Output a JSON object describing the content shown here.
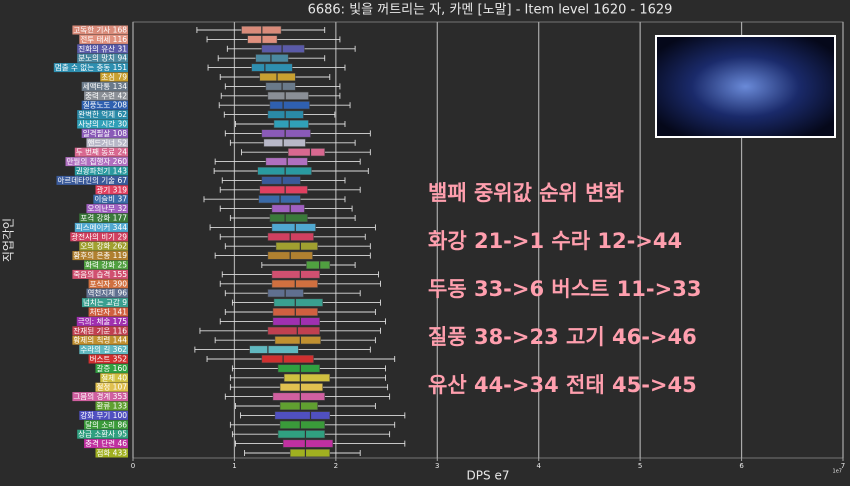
{
  "chart_data": {
    "type": "box",
    "title": "6686: 빛을 꺼트리는 자, 카멘 [노말] - Item level 1620 - 1629",
    "x_label": "DPS e7",
    "y_label": "직업각인",
    "x_offset_label": "1e7",
    "xlim": [
      0,
      7
    ],
    "xticks": [
      0,
      1,
      2,
      3,
      4,
      5,
      6,
      7
    ],
    "grid": true,
    "categories": [
      "고독한 기사 168",
      "전투 태세 116",
      "진화의 유산 31",
      "분노의 망치 94",
      "멈출 수 없는 충동 151",
      "초심 79",
      "세맥타통 134",
      "중력 수련 42",
      "질풍노도 208",
      "완벽한 억제 62",
      "사냥의 시간 30",
      "일격필살 108",
      "핸드거너 52",
      "두 번째 동료 24",
      "만월의 집행자 260",
      "권왕파천기 143",
      "아르데타인의 기술 67",
      "광기 319",
      "이슬비 37",
      "오의난무 32",
      "포격 강화 177",
      "피스메이커 344",
      "광전사의 비기 29",
      "오의 강화 262",
      "황후의 은총 119",
      "화력 강화 25",
      "죽음의 습격 155",
      "포식자 390",
      "역천지체 96",
      "넘치는 교감 9",
      "처단자 141",
      "극의: 체술 175",
      "잔재된 기운 116",
      "황제의 칙령 144",
      "수라의 길 362",
      "버스트 352",
      "갈증 160",
      "절제 40",
      "절정 107",
      "그믐의 경계 353",
      "환류 133",
      "강화 무기 100",
      "달의 소리 86",
      "상급 소환사 95",
      "충격 단련 46",
      "점화 433"
    ],
    "colors": [
      "#d98b7a",
      "#e0907e",
      "#5a5aa8",
      "#4a88a0",
      "#2e8fb0",
      "#c8a030",
      "#6a7a8a",
      "#8a8f96",
      "#2f60b0",
      "#2a8aa8",
      "#30a0b8",
      "#8a5ab8",
      "#b8b8c8",
      "#d86890",
      "#b070c0",
      "#2a9aa0",
      "#3a5a9a",
      "#e04060",
      "#3a6aa8",
      "#a060c0",
      "#3a7a3a",
      "#50a8d0",
      "#d04060",
      "#a0a030",
      "#b08030",
      "#50a040",
      "#d05070",
      "#d07040",
      "#607090",
      "#3aa090",
      "#d06040",
      "#a030b0",
      "#c04050",
      "#c09030",
      "#60b8c0",
      "#d03030",
      "#30a040",
      "#d0c040",
      "#e0c050",
      "#d060a0",
      "#60a030",
      "#5050c0",
      "#3a9a3a",
      "#30a080",
      "#c030a0",
      "#a0b020"
    ],
    "boxes": [
      {
        "low": 0.63,
        "q1": 1.07,
        "median": 1.27,
        "q3": 1.46,
        "high": 1.89
      },
      {
        "low": 0.73,
        "q1": 1.13,
        "median": 1.27,
        "q3": 1.42,
        "high": 2.04
      },
      {
        "low": 0.93,
        "q1": 1.27,
        "median": 1.47,
        "q3": 1.69,
        "high": 2.19
      },
      {
        "low": 0.84,
        "q1": 1.21,
        "median": 1.36,
        "q3": 1.53,
        "high": 1.89
      },
      {
        "low": 0.74,
        "q1": 1.17,
        "median": 1.3,
        "q3": 1.57,
        "high": 2.09
      },
      {
        "low": 0.86,
        "q1": 1.25,
        "median": 1.42,
        "q3": 1.6,
        "high": 1.94
      },
      {
        "low": 0.91,
        "q1": 1.31,
        "median": 1.47,
        "q3": 1.6,
        "high": 2.04
      },
      {
        "low": 0.87,
        "q1": 1.33,
        "median": 1.5,
        "q3": 1.73,
        "high": 2.04
      },
      {
        "low": 0.85,
        "q1": 1.35,
        "median": 1.48,
        "q3": 1.74,
        "high": 2.14
      },
      {
        "low": 0.9,
        "q1": 1.33,
        "median": 1.5,
        "q3": 1.68,
        "high": 1.99
      },
      {
        "low": 1.01,
        "q1": 1.39,
        "median": 1.54,
        "q3": 1.73,
        "high": 2.09
      },
      {
        "low": 0.91,
        "q1": 1.27,
        "median": 1.5,
        "q3": 1.75,
        "high": 2.34
      },
      {
        "low": 0.96,
        "q1": 1.29,
        "median": 1.48,
        "q3": 1.7,
        "high": 2.19
      },
      {
        "low": 1.07,
        "q1": 1.53,
        "median": 1.75,
        "q3": 1.89,
        "high": 2.34
      },
      {
        "low": 0.81,
        "q1": 1.31,
        "median": 1.52,
        "q3": 1.72,
        "high": 2.24
      },
      {
        "low": 0.8,
        "q1": 1.23,
        "median": 1.5,
        "q3": 1.76,
        "high": 2.32
      },
      {
        "low": 0.88,
        "q1": 1.27,
        "median": 1.47,
        "q3": 1.65,
        "high": 2.09
      },
      {
        "low": 0.86,
        "q1": 1.25,
        "median": 1.5,
        "q3": 1.72,
        "high": 2.24
      },
      {
        "low": 0.7,
        "q1": 1.24,
        "median": 1.45,
        "q3": 1.65,
        "high": 2.09
      },
      {
        "low": 0.86,
        "q1": 1.37,
        "median": 1.55,
        "q3": 1.69,
        "high": 2.16
      },
      {
        "low": 0.96,
        "q1": 1.35,
        "median": 1.5,
        "q3": 1.72,
        "high": 2.19
      },
      {
        "low": 0.76,
        "q1": 1.37,
        "median": 1.6,
        "q3": 1.8,
        "high": 2.39
      },
      {
        "low": 0.86,
        "q1": 1.33,
        "median": 1.55,
        "q3": 1.78,
        "high": 2.29
      },
      {
        "low": 0.91,
        "q1": 1.41,
        "median": 1.65,
        "q3": 1.82,
        "high": 2.34
      },
      {
        "low": 0.81,
        "q1": 1.33,
        "median": 1.55,
        "q3": 1.77,
        "high": 2.34
      },
      {
        "low": 1.27,
        "q1": 1.71,
        "median": 1.84,
        "q3": 1.94,
        "high": 2.19
      },
      {
        "low": 0.88,
        "q1": 1.37,
        "median": 1.65,
        "q3": 1.84,
        "high": 2.42
      },
      {
        "low": 0.86,
        "q1": 1.37,
        "median": 1.6,
        "q3": 1.82,
        "high": 2.44
      },
      {
        "low": 0.91,
        "q1": 1.33,
        "median": 1.5,
        "q3": 1.68,
        "high": 2.24
      },
      {
        "low": 0.98,
        "q1": 1.39,
        "median": 1.6,
        "q3": 1.87,
        "high": 2.44
      },
      {
        "low": 0.91,
        "q1": 1.38,
        "median": 1.6,
        "q3": 1.82,
        "high": 2.39
      },
      {
        "low": 0.86,
        "q1": 1.38,
        "median": 1.65,
        "q3": 1.84,
        "high": 2.49
      },
      {
        "low": 0.66,
        "q1": 1.33,
        "median": 1.62,
        "q3": 1.84,
        "high": 2.44
      },
      {
        "low": 0.81,
        "q1": 1.4,
        "median": 1.65,
        "q3": 1.85,
        "high": 2.39
      },
      {
        "low": 0.61,
        "q1": 1.15,
        "median": 1.33,
        "q3": 1.63,
        "high": 2.34
      },
      {
        "low": 0.73,
        "q1": 1.27,
        "median": 1.48,
        "q3": 1.78,
        "high": 2.58
      },
      {
        "low": 0.98,
        "q1": 1.43,
        "median": 1.65,
        "q3": 1.84,
        "high": 2.49
      },
      {
        "low": 0.96,
        "q1": 1.49,
        "median": 1.65,
        "q3": 1.94,
        "high": 2.49
      },
      {
        "low": 0.96,
        "q1": 1.45,
        "median": 1.65,
        "q3": 1.87,
        "high": 2.51
      },
      {
        "low": 0.91,
        "q1": 1.38,
        "median": 1.65,
        "q3": 1.89,
        "high": 2.53
      },
      {
        "low": 1.01,
        "q1": 1.45,
        "median": 1.65,
        "q3": 1.82,
        "high": 2.39
      },
      {
        "low": 1.06,
        "q1": 1.4,
        "median": 1.75,
        "q3": 1.94,
        "high": 2.68
      },
      {
        "low": 0.96,
        "q1": 1.45,
        "median": 1.65,
        "q3": 1.89,
        "high": 2.58
      },
      {
        "low": 0.98,
        "q1": 1.43,
        "median": 1.7,
        "q3": 1.89,
        "high": 2.53
      },
      {
        "low": 1.01,
        "q1": 1.48,
        "median": 1.7,
        "q3": 1.97,
        "high": 2.68
      },
      {
        "low": 1.1,
        "q1": 1.55,
        "median": 1.7,
        "q3": 1.94,
        "high": 2.24
      }
    ],
    "annotations": [
      "밸패 중위값 순위 변화",
      "화강 21->1  수라 12->44",
      "두동 33->6  버스트 11->33",
      "질풍 38->23  고기 46->46",
      "유산 44->34  전태 45->45"
    ]
  }
}
